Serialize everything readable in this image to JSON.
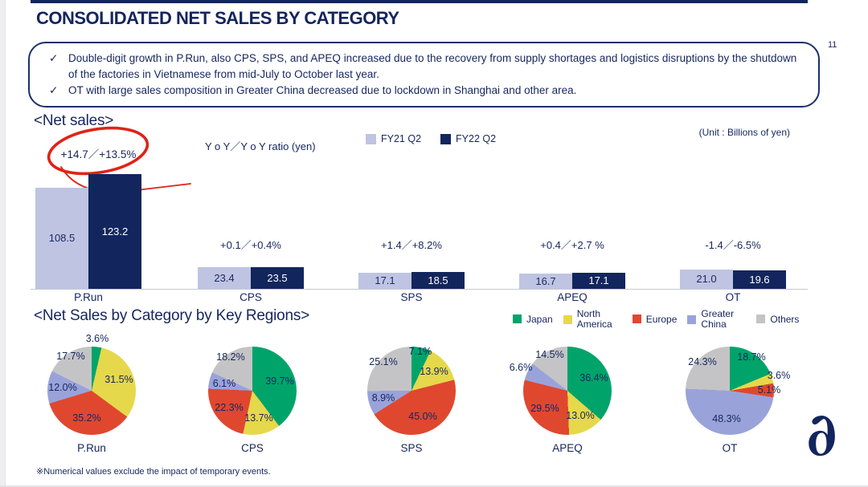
{
  "page": {
    "title": "CONSOLIDATED NET SALES BY CATEGORY",
    "page_number": "11",
    "callout": {
      "bullet_mark": "✓",
      "bullets": [
        "Double-digit growth in P.Run, also CPS, SPS, and APEQ increased due to the recovery from supply shortages and logistics disruptions by the shutdown of the factories in Vietnamese from mid-July to October last year.",
        "OT with large sales composition in Greater China decreased due to lockdown in Shanghai and other area."
      ]
    },
    "footnote": "※Numerical values exclude the impact of temporary events.",
    "brand": "asics-swirl-logo"
  },
  "net_sales_section": {
    "heading": "<Net sales>",
    "unit_label": "(Unit : Billions of yen)",
    "ratio_axis_label": "Y o Y／Y o Y ratio (yen)",
    "legend": [
      {
        "label": "FY21 Q2",
        "color": "#bfc4e2"
      },
      {
        "label": "FY22 Q2",
        "color": "#12265d"
      }
    ],
    "highlight_color": "#df2318"
  },
  "regions_section": {
    "heading": "<Net Sales by Category by Key Regions>",
    "legend": [
      {
        "label": "Japan",
        "color": "#00a46b"
      },
      {
        "label": "North America",
        "color": "#e6d84b"
      },
      {
        "label": "Europe",
        "color": "#e0472f"
      },
      {
        "label": "Greater China",
        "color": "#99a3da"
      },
      {
        "label": "Others",
        "color": "#c4c4c6"
      }
    ]
  },
  "chart_data": [
    {
      "type": "bar",
      "title": "Net sales",
      "unit": "Billions of yen",
      "categories": [
        "P.Run",
        "CPS",
        "SPS",
        "APEQ",
        "OT"
      ],
      "series": [
        {
          "name": "FY21 Q2",
          "color": "#bfc4e2",
          "values": [
            108.5,
            23.4,
            17.1,
            16.7,
            21.0
          ]
        },
        {
          "name": "FY22 Q2",
          "color": "#12265d",
          "values": [
            123.2,
            23.5,
            18.5,
            17.1,
            19.6
          ]
        }
      ],
      "yoy_ratios": [
        "+14.7／+13.5%",
        "+0.1／+0.4%",
        "+1.4／+8.2%",
        "+0.4／+2.7 %",
        "-1.4／-6.5%"
      ],
      "highlight_index": 0,
      "legend_position": "top",
      "grid": false
    },
    {
      "type": "pie",
      "title": "Net Sales by Category by Key Regions",
      "regions": [
        "Japan",
        "North America",
        "Europe",
        "Greater China",
        "Others"
      ],
      "colors": [
        "#00a46b",
        "#e6d84b",
        "#e0472f",
        "#99a3da",
        "#c4c4c6"
      ],
      "pies": [
        {
          "category": "P.Run",
          "values": [
            3.6,
            31.5,
            35.2,
            12.0,
            17.7
          ],
          "label_pos": [
            "out",
            "in",
            "in",
            "in",
            "edge"
          ]
        },
        {
          "category": "CPS",
          "values": [
            39.7,
            13.7,
            22.3,
            6.1,
            18.2
          ],
          "label_pos": [
            "in",
            "in",
            "in",
            "in",
            "edge"
          ]
        },
        {
          "category": "SPS",
          "values": [
            7.1,
            13.9,
            45.0,
            8.9,
            25.1
          ],
          "label_pos": [
            "edge",
            "in",
            "in",
            "in",
            "edge"
          ]
        },
        {
          "category": "APEQ",
          "values": [
            36.4,
            13.0,
            29.5,
            6.6,
            14.5
          ],
          "label_pos": [
            "in",
            "in",
            "in",
            "out",
            "edge"
          ]
        },
        {
          "category": "OT",
          "values": [
            18.7,
            3.6,
            5.1,
            48.3,
            24.3
          ],
          "label_pos": [
            "edge",
            "out",
            "edge",
            "in",
            "edge"
          ]
        }
      ]
    }
  ]
}
